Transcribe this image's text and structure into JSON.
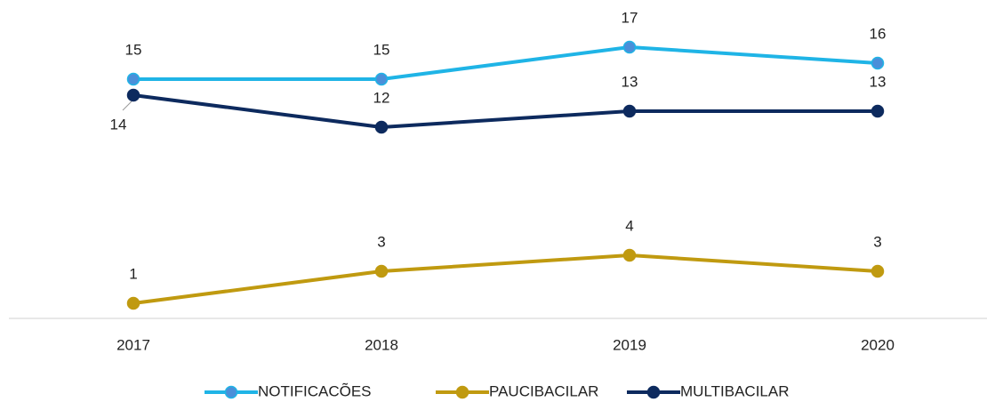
{
  "chart_data": {
    "type": "line",
    "categories": [
      "2017",
      "2018",
      "2019",
      "2020"
    ],
    "series": [
      {
        "name": "NOTIFICACÕES",
        "color": "#1fb4e6",
        "marker_color": "#4a8fd9",
        "values": [
          15,
          15,
          17,
          16
        ]
      },
      {
        "name": "PAUCIBACILAR",
        "color": "#c09a10",
        "marker_color": "#c09a10",
        "values": [
          1,
          3,
          4,
          3
        ]
      },
      {
        "name": "MULTIBACILAR",
        "color": "#0d2a5e",
        "marker_color": "#0d2a5e",
        "values": [
          14,
          12,
          13,
          13
        ]
      }
    ],
    "ylim": [
      0,
      18
    ],
    "grid": false,
    "legend": "bottom"
  }
}
